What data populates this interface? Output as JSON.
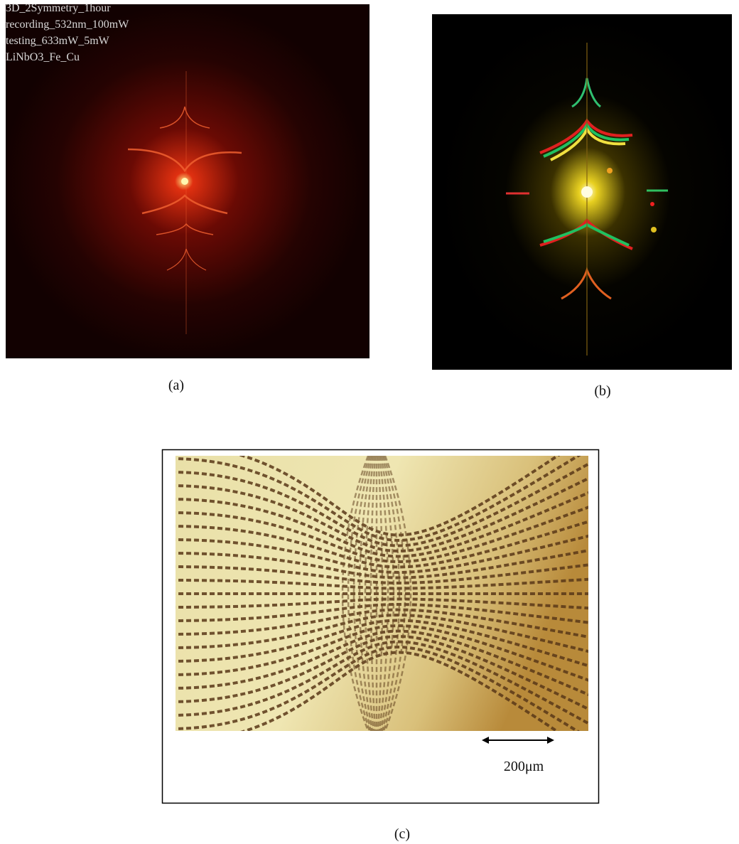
{
  "panels": [
    {
      "overlay_text": [
        "3D_2Symmetry_1hour",
        "recording_532nm_100mW",
        "testing_633mW_5mW",
        "LiNbO3_Fe_Cu"
      ],
      "caption": "(a)"
    },
    {
      "caption": "(b)"
    },
    {
      "caption": "(c)",
      "scale_bar": "200μm"
    }
  ]
}
